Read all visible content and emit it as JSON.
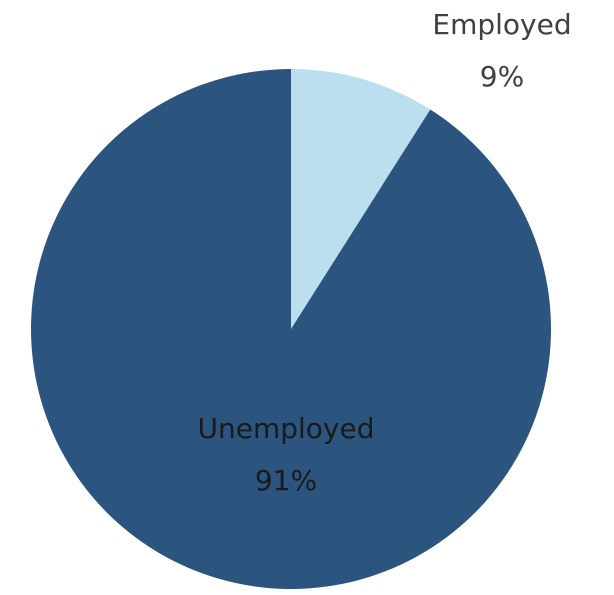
{
  "chart_data": {
    "type": "pie",
    "title": "",
    "series": [
      {
        "values": [
          9,
          91
        ]
      }
    ],
    "slices": [
      {
        "label": "Employed",
        "value": 9,
        "value_label": "9%",
        "color": "#bcdff0",
        "label_color": "#404040"
      },
      {
        "label": "Unemployed",
        "value": 91,
        "value_label": "91%",
        "color": "#2b557f",
        "label_color": "#1a1a1a"
      }
    ],
    "start_angle": "12 o'clock",
    "direction": "clockwise",
    "legend": "none"
  }
}
